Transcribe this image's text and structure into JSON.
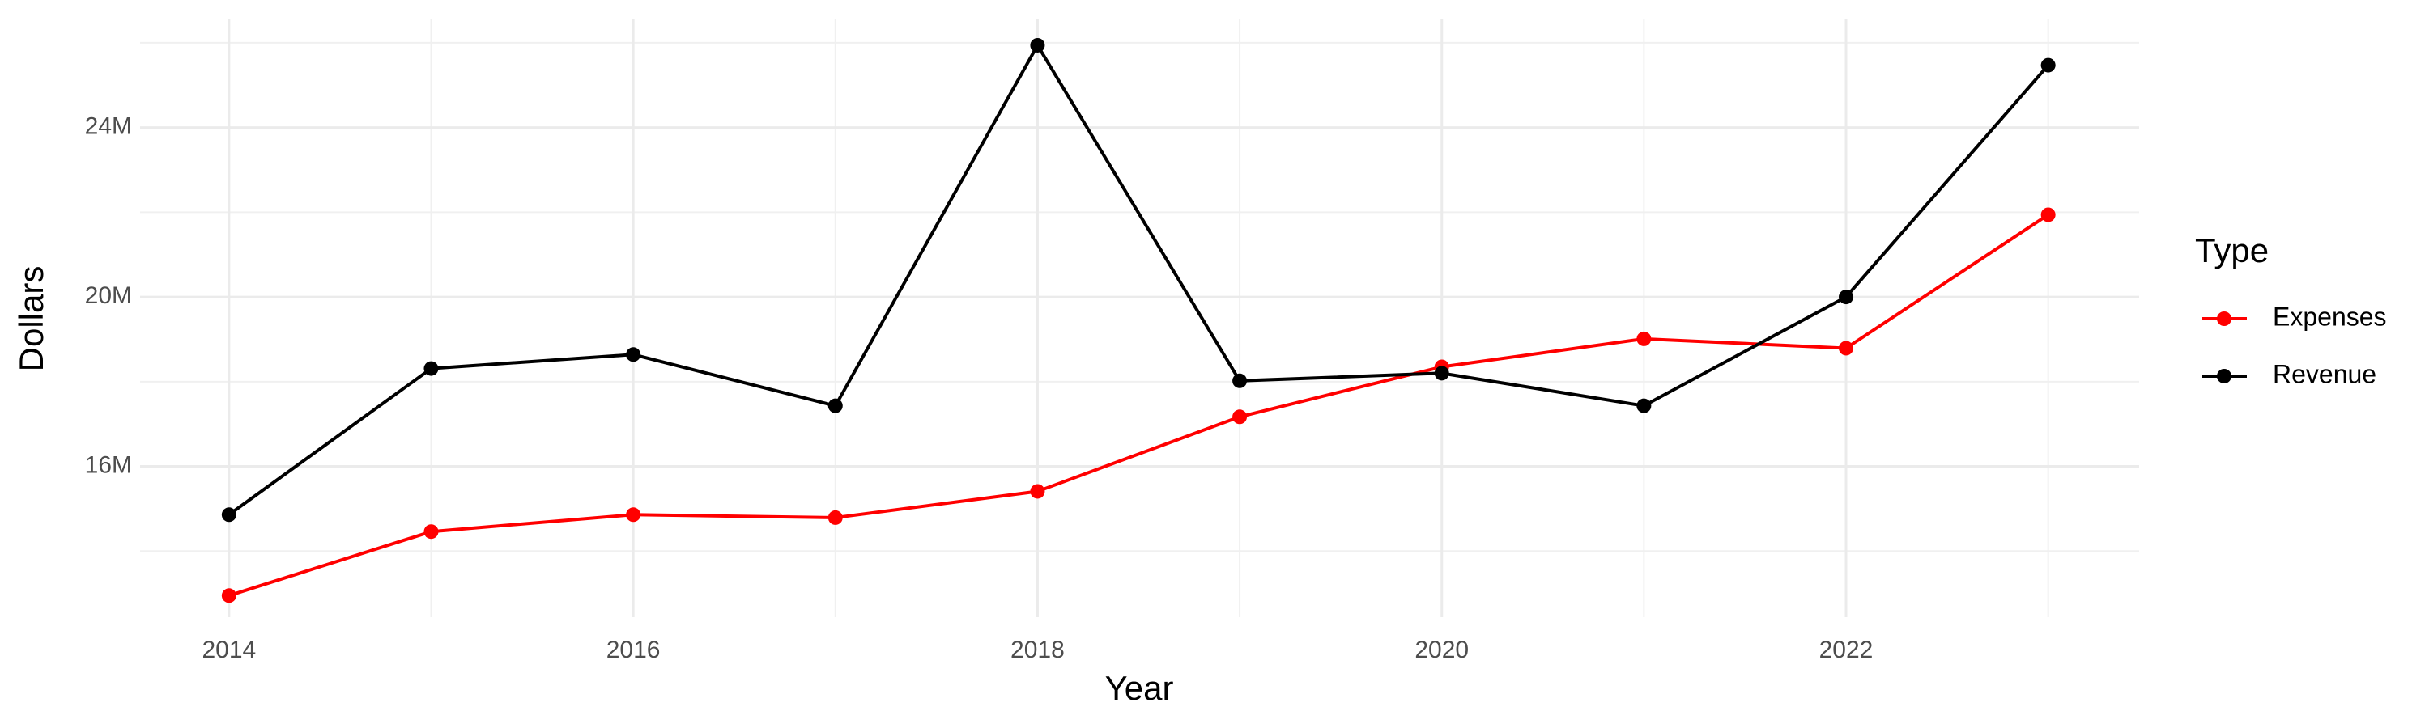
{
  "chart_data": {
    "type": "line",
    "x_label": "Year",
    "y_label": "Dollars",
    "x": [
      2014,
      2015,
      2016,
      2017,
      2018,
      2019,
      2020,
      2021,
      2022,
      2023
    ],
    "series": [
      {
        "name": "Expenses",
        "color": "#ff0000",
        "values": [
          12950000,
          14460000,
          14860000,
          14790000,
          15410000,
          17170000,
          18350000,
          19010000,
          18790000,
          21940000
        ]
      },
      {
        "name": "Revenue",
        "color": "#000000",
        "values": [
          14860000,
          18310000,
          18640000,
          17430000,
          25940000,
          18020000,
          18200000,
          17430000,
          20000000,
          25470000
        ]
      }
    ],
    "xlim": [
      2013.56,
      2023.45
    ],
    "xticks": [
      2014,
      2016,
      2018,
      2020,
      2022
    ],
    "xminorticks": [
      2015,
      2017,
      2019,
      2021,
      2023
    ],
    "ylim": [
      12440000,
      26570000
    ],
    "yticks": [
      {
        "value": 16000000,
        "label": "16M"
      },
      {
        "value": 20000000,
        "label": "20M"
      },
      {
        "value": 24000000,
        "label": "24M"
      }
    ],
    "yminorticks": [
      14000000,
      18000000,
      22000000,
      26000000
    ],
    "grid": true,
    "legend_title": "Type",
    "legend_position": "right"
  }
}
